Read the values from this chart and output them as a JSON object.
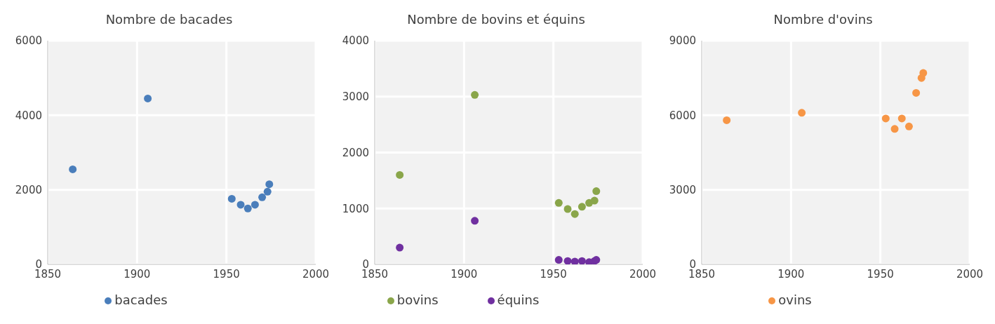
{
  "chart_data": [
    {
      "type": "scatter",
      "title": "Nombre de bacades",
      "x": [
        1864,
        1906,
        1953,
        1958,
        1962,
        1966,
        1970,
        1973,
        1974
      ],
      "series": [
        {
          "name": "bacades",
          "color": "#4a7ebb",
          "values": [
            2550,
            4450,
            1760,
            1600,
            1500,
            1600,
            1800,
            1950,
            2150
          ]
        }
      ],
      "xlim": [
        1850,
        2000
      ],
      "xticks": [
        1850,
        1900,
        1950,
        2000
      ],
      "ylim": [
        0,
        6000
      ],
      "yticks": [
        0,
        2000,
        4000,
        6000
      ],
      "grid": true,
      "legend": "bottom",
      "marker": "circle"
    },
    {
      "type": "scatter",
      "title": "Nombre de bovins et équins",
      "x": [
        1864,
        1906,
        1953,
        1958,
        1962,
        1966,
        1970,
        1973,
        1974
      ],
      "series": [
        {
          "name": "bovins",
          "color": "#8aa64a",
          "values": [
            1600,
            3030,
            1100,
            990,
            900,
            1030,
            1100,
            1140,
            1310
          ]
        },
        {
          "name": "équins",
          "color": "#7030a0",
          "values": [
            300,
            780,
            80,
            60,
            50,
            60,
            40,
            60,
            80
          ]
        }
      ],
      "xlim": [
        1850,
        2000
      ],
      "xticks": [
        1850,
        1900,
        1950,
        2000
      ],
      "ylim": [
        0,
        4000
      ],
      "yticks": [
        0,
        1000,
        2000,
        3000,
        4000
      ],
      "grid": true,
      "legend": "bottom",
      "marker": "circle"
    },
    {
      "type": "scatter",
      "title": "Nombre d'ovins",
      "x": [
        1864,
        1906,
        1953,
        1958,
        1962,
        1966,
        1970,
        1973,
        1974
      ],
      "series": [
        {
          "name": "ovins",
          "color": "#f79646",
          "values": [
            5800,
            6100,
            5870,
            5450,
            5870,
            5550,
            6900,
            7500,
            7700
          ]
        }
      ],
      "xlim": [
        1850,
        2000
      ],
      "xticks": [
        1850,
        1900,
        1950,
        2000
      ],
      "ylim": [
        0,
        9000
      ],
      "yticks": [
        0,
        3000,
        6000,
        9000
      ],
      "grid": true,
      "legend": "bottom",
      "marker": "circle"
    }
  ]
}
